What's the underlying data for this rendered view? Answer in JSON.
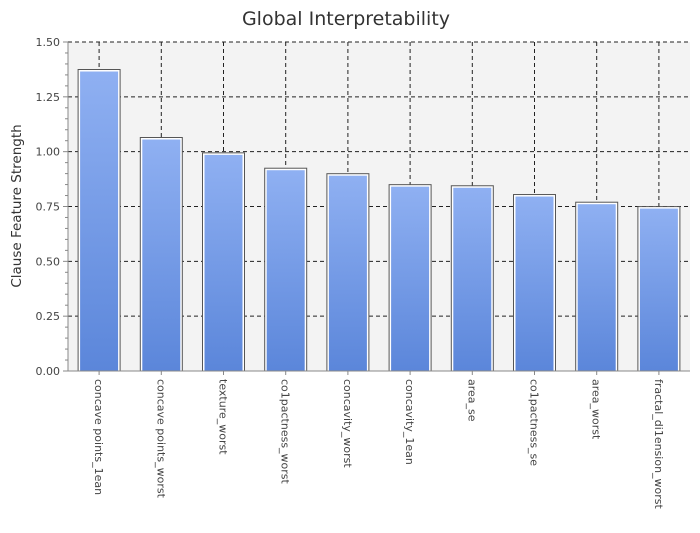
{
  "chart_data": {
    "type": "bar",
    "title": "Global Interpretability",
    "xlabel": "",
    "ylabel": "Clause Feature Strength",
    "ylim": [
      0,
      1.5
    ],
    "yticks": [
      "0.00",
      "0.25",
      "0.50",
      "0.75",
      "1.00",
      "1.25",
      "1.50"
    ],
    "categories": [
      "concave points_1ean",
      "concave points_worst",
      "texture_worst",
      "co1pactness_worst",
      "concavity_worst",
      "concavity_1ean",
      "area_se",
      "co1pactness_se",
      "area_worst",
      "fractal_di1ension_worst"
    ],
    "values": [
      1.37,
      1.06,
      0.99,
      0.92,
      0.895,
      0.845,
      0.84,
      0.8,
      0.765,
      0.745
    ],
    "grid": true,
    "bar_color_top": "#8fb0f2",
    "bar_color_bottom": "#5b86da",
    "plot_background": "#f3f3f3"
  }
}
